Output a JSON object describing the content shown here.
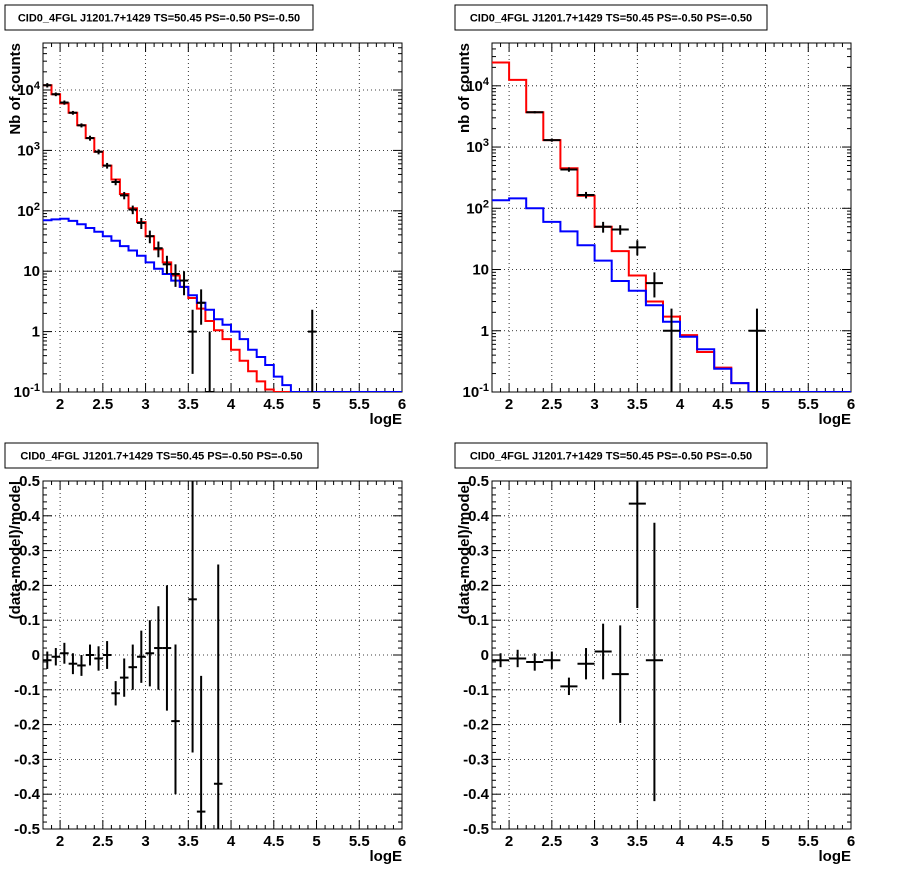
{
  "chart_data": [
    {
      "type": "line",
      "title": "CID0_4FGL J1201.7+1429 TS=50.45 PS=-0.50 PS=-0.50",
      "xlabel": "logE",
      "ylabel": "Nb of counts",
      "ylog": true,
      "xlim": [
        1.8,
        6.0
      ],
      "ylim": [
        0.1,
        60000
      ],
      "x_ticks": [
        "2",
        "2.5",
        "3",
        "3.5",
        "4",
        "4.5",
        "5",
        "5.5",
        "6"
      ],
      "y_ticks": [
        "10^-1",
        "1",
        "10",
        "10^2",
        "10^3",
        "10^4"
      ],
      "grid": true,
      "series": [
        {
          "color": "#ff0000",
          "style": "step",
          "edges": [
            1.8,
            1.9,
            2.0,
            2.1,
            2.2,
            2.3,
            2.4,
            2.5,
            2.6,
            2.7,
            2.8,
            2.9,
            3.0,
            3.1,
            3.2,
            3.3,
            3.4,
            3.5,
            3.6,
            3.7,
            3.8,
            3.9,
            4.0,
            4.1,
            4.2,
            4.3,
            4.4,
            4.5,
            4.6,
            4.7,
            4.8,
            4.9,
            5.0,
            5.1,
            5.2,
            5.3,
            5.4,
            5.5,
            5.6,
            5.7,
            5.8,
            5.9,
            6.0
          ],
          "values": [
            12000,
            8500,
            6000,
            4200,
            2600,
            1600,
            950,
            560,
            330,
            190,
            110,
            65,
            38,
            23,
            14,
            8.5,
            5.5,
            3.6,
            2.4,
            1.5,
            1.05,
            0.75,
            0.5,
            0.33,
            0.22,
            0.15,
            0.11,
            0.1,
            0.1,
            0.1,
            0.1,
            0.1,
            0.1,
            0.1,
            0.1,
            0.1,
            0.1,
            0.1,
            0.1,
            0.1,
            0.1,
            0.1
          ]
        },
        {
          "color": "#0000ff",
          "style": "step",
          "edges": [
            1.8,
            1.9,
            2.0,
            2.1,
            2.2,
            2.3,
            2.4,
            2.5,
            2.6,
            2.7,
            2.8,
            2.9,
            3.0,
            3.1,
            3.2,
            3.3,
            3.4,
            3.5,
            3.6,
            3.7,
            3.8,
            3.9,
            4.0,
            4.1,
            4.2,
            4.3,
            4.4,
            4.5,
            4.6,
            4.7,
            4.8,
            4.9,
            5.0,
            5.1,
            5.2,
            5.3,
            5.4,
            5.5,
            5.6,
            5.7,
            5.8,
            5.9,
            6.0
          ],
          "values": [
            70,
            72,
            74,
            68,
            60,
            52,
            45,
            38,
            32,
            26,
            22,
            18,
            14,
            11,
            9,
            7,
            5.5,
            4,
            3,
            2.3,
            1.6,
            1.3,
            1.0,
            0.75,
            0.5,
            0.38,
            0.28,
            0.18,
            0.13,
            0.1,
            0.1,
            0.1,
            0.1,
            0.1,
            0.1,
            0.1,
            0.1,
            0.1,
            0.1,
            0.1,
            0.1,
            0.1
          ]
        },
        {
          "color": "#000000",
          "style": "errorbar",
          "points": [
            {
              "x": 1.85,
              "y": 12000,
              "xerr": 0.05,
              "ylo": 11000,
              "yhi": 13000
            },
            {
              "x": 1.95,
              "y": 8500,
              "xerr": 0.05,
              "ylo": 7900,
              "yhi": 9100
            },
            {
              "x": 2.05,
              "y": 6200,
              "xerr": 0.05,
              "ylo": 5700,
              "yhi": 6700
            },
            {
              "x": 2.15,
              "y": 4200,
              "xerr": 0.05,
              "ylo": 3900,
              "yhi": 4500
            },
            {
              "x": 2.25,
              "y": 2600,
              "xerr": 0.05,
              "ylo": 2400,
              "yhi": 2800
            },
            {
              "x": 2.35,
              "y": 1600,
              "xerr": 0.05,
              "ylo": 1450,
              "yhi": 1750
            },
            {
              "x": 2.45,
              "y": 950,
              "xerr": 0.05,
              "ylo": 860,
              "yhi": 1040
            },
            {
              "x": 2.55,
              "y": 560,
              "xerr": 0.05,
              "ylo": 500,
              "yhi": 620
            },
            {
              "x": 2.65,
              "y": 300,
              "xerr": 0.05,
              "ylo": 265,
              "yhi": 335
            },
            {
              "x": 2.75,
              "y": 180,
              "xerr": 0.05,
              "ylo": 155,
              "yhi": 205
            },
            {
              "x": 2.85,
              "y": 105,
              "xerr": 0.05,
              "ylo": 88,
              "yhi": 122
            },
            {
              "x": 2.95,
              "y": 63,
              "xerr": 0.05,
              "ylo": 50,
              "yhi": 76
            },
            {
              "x": 3.05,
              "y": 38,
              "xerr": 0.05,
              "ylo": 29,
              "yhi": 47
            },
            {
              "x": 3.15,
              "y": 24,
              "xerr": 0.05,
              "ylo": 17,
              "yhi": 31
            },
            {
              "x": 3.25,
              "y": 13,
              "xerr": 0.05,
              "ylo": 9,
              "yhi": 18
            },
            {
              "x": 3.35,
              "y": 9,
              "xerr": 0.05,
              "ylo": 5.5,
              "yhi": 13
            },
            {
              "x": 3.45,
              "y": 7,
              "xerr": 0.05,
              "ylo": 4,
              "yhi": 10
            },
            {
              "x": 3.55,
              "y": 1,
              "xerr": 0.05,
              "ylo": 0.2,
              "yhi": 2.3
            },
            {
              "x": 3.65,
              "y": 3,
              "xerr": 0.05,
              "ylo": 1.3,
              "yhi": 5
            },
            {
              "x": 3.75,
              "y": 0.1,
              "xerr": 0.05,
              "ylo": 0.1,
              "yhi": 1.0
            },
            {
              "x": 4.95,
              "y": 1,
              "xerr": 0.05,
              "ylo": 0.1,
              "yhi": 2.3
            }
          ]
        }
      ]
    },
    {
      "type": "line",
      "title": "CID0_4FGL J1201.7+1429 TS=50.45 PS=-0.50 PS=-0.50",
      "xlabel": "logE",
      "ylabel": "nb of counts",
      "ylog": true,
      "xlim": [
        1.8,
        6.0
      ],
      "ylim": [
        0.1,
        50000
      ],
      "x_ticks": [
        "2",
        "2.5",
        "3",
        "3.5",
        "4",
        "4.5",
        "5",
        "5.5",
        "6"
      ],
      "y_ticks": [
        "10^-1",
        "1",
        "10",
        "10^2",
        "10^3",
        "10^4"
      ],
      "grid": true,
      "series": [
        {
          "color": "#ff0000",
          "style": "step",
          "edges": [
            1.8,
            2.0,
            2.2,
            2.4,
            2.6,
            2.8,
            3.0,
            3.2,
            3.4,
            3.6,
            3.8,
            4.0,
            4.2,
            4.4,
            4.6,
            4.8,
            5.0,
            5.2,
            5.4,
            5.6,
            5.8,
            6.0
          ],
          "values": [
            24000,
            12500,
            3700,
            1300,
            450,
            160,
            50,
            20,
            8,
            3,
            1.7,
            0.85,
            0.45,
            0.25,
            0.14,
            0.1,
            0.1,
            0.1,
            0.1,
            0.1,
            0.1
          ]
        },
        {
          "color": "#0000ff",
          "style": "step",
          "edges": [
            1.8,
            2.0,
            2.2,
            2.4,
            2.6,
            2.8,
            3.0,
            3.2,
            3.4,
            3.6,
            3.8,
            4.0,
            4.2,
            4.4,
            4.6,
            4.8,
            5.0,
            5.2,
            5.4,
            5.6,
            5.8,
            6.0
          ],
          "values": [
            135,
            145,
            100,
            60,
            42,
            25,
            14,
            6.5,
            4.5,
            2.6,
            1.4,
            0.8,
            0.5,
            0.24,
            0.14,
            0.1,
            0.1,
            0.1,
            0.1,
            0.1,
            0.1
          ]
        },
        {
          "color": "#000000",
          "style": "errorbar",
          "points": [
            {
              "x": 2.3,
              "y": 3700,
              "xerr": 0.1,
              "ylo": 3550,
              "yhi": 3850
            },
            {
              "x": 2.5,
              "y": 1300,
              "xerr": 0.1,
              "ylo": 1220,
              "yhi": 1380
            },
            {
              "x": 2.7,
              "y": 430,
              "xerr": 0.1,
              "ylo": 395,
              "yhi": 465
            },
            {
              "x": 2.9,
              "y": 165,
              "xerr": 0.1,
              "ylo": 145,
              "yhi": 185
            },
            {
              "x": 3.1,
              "y": 50,
              "xerr": 0.1,
              "ylo": 40,
              "yhi": 60
            },
            {
              "x": 3.3,
              "y": 45,
              "xerr": 0.1,
              "ylo": 37,
              "yhi": 53
            },
            {
              "x": 3.5,
              "y": 23,
              "xerr": 0.1,
              "ylo": 17,
              "yhi": 30
            },
            {
              "x": 3.7,
              "y": 6,
              "xerr": 0.1,
              "ylo": 3.5,
              "yhi": 9
            },
            {
              "x": 3.9,
              "y": 1,
              "xerr": 0.1,
              "ylo": 0.1,
              "yhi": 2.3
            },
            {
              "x": 4.9,
              "y": 1,
              "xerr": 0.1,
              "ylo": 0.1,
              "yhi": 2.3
            }
          ]
        }
      ]
    },
    {
      "type": "scatter",
      "title": "CID0_4FGL J1201.7+1429 TS=50.45 PS=-0.50 PS=-0.50",
      "xlabel": "logE",
      "ylabel": "(data-model)/model",
      "ylog": false,
      "xlim": [
        1.8,
        6.0
      ],
      "ylim": [
        -0.5,
        0.5
      ],
      "x_ticks": [
        "2",
        "2.5",
        "3",
        "3.5",
        "4",
        "4.5",
        "5",
        "5.5",
        "6"
      ],
      "y_ticks": [
        "-0.5",
        "-0.4",
        "-0.3",
        "-0.2",
        "-0.1",
        "0",
        "0.1",
        "0.2",
        "0.3",
        "0.4",
        "0.5"
      ],
      "grid": true,
      "series": [
        {
          "color": "#000000",
          "style": "errorbar",
          "points": [
            {
              "x": 1.85,
              "y": -0.015,
              "xerr": 0.05,
              "ylo": -0.04,
              "yhi": 0.01
            },
            {
              "x": 1.95,
              "y": -0.005,
              "xerr": 0.05,
              "ylo": -0.03,
              "yhi": 0.02
            },
            {
              "x": 2.05,
              "y": 0.005,
              "xerr": 0.05,
              "ylo": -0.025,
              "yhi": 0.035
            },
            {
              "x": 2.15,
              "y": -0.025,
              "xerr": 0.05,
              "ylo": -0.055,
              "yhi": 0.005
            },
            {
              "x": 2.25,
              "y": -0.03,
              "xerr": 0.05,
              "ylo": -0.06,
              "yhi": 0.0
            },
            {
              "x": 2.35,
              "y": 0.0,
              "xerr": 0.05,
              "ylo": -0.03,
              "yhi": 0.03
            },
            {
              "x": 2.45,
              "y": -0.01,
              "xerr": 0.05,
              "ylo": -0.045,
              "yhi": 0.025
            },
            {
              "x": 2.55,
              "y": 0.0,
              "xerr": 0.05,
              "ylo": -0.04,
              "yhi": 0.04
            },
            {
              "x": 2.65,
              "y": -0.11,
              "xerr": 0.05,
              "ylo": -0.145,
              "yhi": -0.075
            },
            {
              "x": 2.75,
              "y": -0.065,
              "xerr": 0.05,
              "ylo": -0.12,
              "yhi": -0.01
            },
            {
              "x": 2.85,
              "y": -0.035,
              "xerr": 0.05,
              "ylo": -0.1,
              "yhi": 0.03
            },
            {
              "x": 2.95,
              "y": -0.005,
              "xerr": 0.05,
              "ylo": -0.08,
              "yhi": 0.07
            },
            {
              "x": 3.05,
              "y": 0.005,
              "xerr": 0.05,
              "ylo": -0.09,
              "yhi": 0.1
            },
            {
              "x": 3.15,
              "y": 0.02,
              "xerr": 0.05,
              "ylo": -0.1,
              "yhi": 0.14
            },
            {
              "x": 3.25,
              "y": 0.02,
              "xerr": 0.05,
              "ylo": -0.16,
              "yhi": 0.2
            },
            {
              "x": 3.35,
              "y": -0.19,
              "xerr": 0.05,
              "ylo": -0.4,
              "yhi": 0.03
            },
            {
              "x": 3.55,
              "y": 0.16,
              "xerr": 0.05,
              "ylo": -0.28,
              "yhi": 0.5
            },
            {
              "x": 3.65,
              "y": -0.45,
              "xerr": 0.05,
              "ylo": -0.5,
              "yhi": -0.06
            },
            {
              "x": 3.85,
              "y": -0.37,
              "xerr": 0.05,
              "ylo": -0.5,
              "yhi": 0.26
            }
          ]
        }
      ]
    },
    {
      "type": "scatter",
      "title": "CID0_4FGL J1201.7+1429 TS=50.45 PS=-0.50 PS=-0.50",
      "xlabel": "logE",
      "ylabel": "(data-model)/model",
      "ylog": false,
      "xlim": [
        1.8,
        6.0
      ],
      "ylim": [
        -0.5,
        0.5
      ],
      "x_ticks": [
        "2",
        "2.5",
        "3",
        "3.5",
        "4",
        "4.5",
        "5",
        "5.5",
        "6"
      ],
      "y_ticks": [
        "-0.5",
        "-0.4",
        "-0.3",
        "-0.2",
        "-0.1",
        "0",
        "0.1",
        "0.2",
        "0.3",
        "0.4",
        "0.5"
      ],
      "grid": true,
      "series": [
        {
          "color": "#000000",
          "style": "errorbar",
          "points": [
            {
              "x": 1.9,
              "y": -0.015,
              "xerr": 0.1,
              "ylo": -0.035,
              "yhi": 0.005
            },
            {
              "x": 2.1,
              "y": -0.01,
              "xerr": 0.1,
              "ylo": -0.035,
              "yhi": 0.015
            },
            {
              "x": 2.3,
              "y": -0.02,
              "xerr": 0.1,
              "ylo": -0.045,
              "yhi": 0.005
            },
            {
              "x": 2.5,
              "y": -0.015,
              "xerr": 0.1,
              "ylo": -0.04,
              "yhi": 0.01
            },
            {
              "x": 2.7,
              "y": -0.09,
              "xerr": 0.1,
              "ylo": -0.115,
              "yhi": -0.065
            },
            {
              "x": 2.9,
              "y": -0.025,
              "xerr": 0.1,
              "ylo": -0.07,
              "yhi": 0.02
            },
            {
              "x": 3.1,
              "y": 0.01,
              "xerr": 0.1,
              "ylo": -0.07,
              "yhi": 0.09
            },
            {
              "x": 3.3,
              "y": -0.055,
              "xerr": 0.1,
              "ylo": -0.195,
              "yhi": 0.085
            },
            {
              "x": 3.5,
              "y": 0.435,
              "xerr": 0.1,
              "ylo": 0.135,
              "yhi": 0.5
            },
            {
              "x": 3.7,
              "y": -0.015,
              "xerr": 0.1,
              "ylo": -0.42,
              "yhi": 0.38
            }
          ]
        }
      ]
    }
  ]
}
